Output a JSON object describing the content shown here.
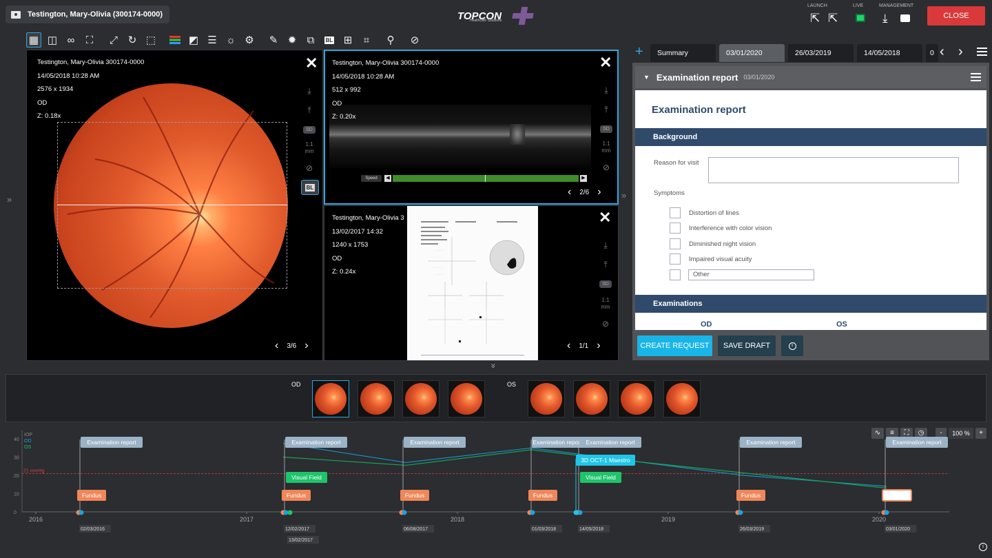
{
  "header": {
    "patient_label": "Testington, Mary-Olivia (300174-0000)",
    "brand": "TOPCON",
    "brand_sub": "Healthcare Solutions",
    "launch_label": "LAUNCH",
    "live_label": "LIVE",
    "management_label": "MANAGEMENT",
    "close_label": "CLOSE"
  },
  "toolbar": {
    "icons": [
      "grid-layout-icon",
      "split-layout-icon",
      "link-icon",
      "fullscreen-icon",
      "expand-diagonal-icon",
      "rotate-icon",
      "crop-icon",
      "color-channels-icon",
      "contrast-icon",
      "lines-icon",
      "brightness-icon",
      "settings-gear-icon",
      "pen-icon",
      "sun-icon",
      "layers-icon",
      "bl-icon",
      "grid-settings-icon",
      "mouse-icon",
      "marker-icon",
      "reset-icon"
    ]
  },
  "viewer1": {
    "line1": "Testington, Mary-Olivia 300174-0000",
    "line2": "14/05/2018 10:28 AM",
    "line3": "2576 x 1934",
    "line4": "OD",
    "line5": "Z: 0.18x",
    "pager": "3/6"
  },
  "viewer2": {
    "line1": "Testington, Mary-Olivia 300174-0000",
    "line2": "14/05/2018 10:28 AM",
    "line3": "512 x 992",
    "line4": "OD",
    "line5": "Z: 0.20x",
    "speed_label": "Speed",
    "pager": "2/6"
  },
  "viewer3": {
    "line1": "Testington, Mary-Olivia 3",
    "line2": "13/02/2017 14:32",
    "line3": "1240 x 1753",
    "line4": "OD",
    "line5": "Z: 0.24x",
    "pager": "1/1"
  },
  "side_tools": {
    "sd": "SD",
    "scale": "1:1",
    "unit": "mm",
    "bl": "BL"
  },
  "tabs": {
    "summary": "Summary",
    "t1": "03/01/2020",
    "t2": "26/03/2019",
    "t3": "14/05/2018",
    "t4": "0"
  },
  "report": {
    "header_title": "Examination report",
    "header_date": "03/01/2020",
    "title": "Examination report",
    "background_section": "Background",
    "reason_label": "Reason for visit",
    "reason_value": "",
    "symptoms_label": "Symptoms",
    "symptoms": [
      "Distortion of lines",
      "Interference with color vision",
      "Diminished night vision",
      "Impaired visual acuity"
    ],
    "other_placeholder": "Other",
    "examinations_section": "Examinations",
    "od": "OD",
    "os": "OS",
    "create_request": "CREATE REQUEST",
    "save_draft": "SAVE DRAFT",
    "info_icon": "info-icon"
  },
  "thumbs": {
    "od_label": "OD",
    "os_label": "OS",
    "od_count": 4,
    "os_count": 4
  },
  "timeline": {
    "legend": [
      "IOP",
      "OD",
      "OS"
    ],
    "y_ticks": [
      "40",
      "30",
      "20",
      "10",
      "0"
    ],
    "threshold_label": "21 mmHg",
    "years": [
      "2016",
      "2017",
      "2018",
      "2019",
      "2020"
    ],
    "zoom": "100 %",
    "zoom_minus": "-",
    "zoom_plus": "+",
    "dates": [
      "02/03/2016",
      "12/02/2017",
      "13/02/2017",
      "06/08/2017",
      "01/03/2018",
      "14/05/2018",
      "26/03/2019",
      "03/01/2020"
    ],
    "exam_label": "Examination report",
    "fundus_label": "Fundus",
    "vf_label": "Visual Field",
    "oct_label": "3D OCT-1 Maestro"
  },
  "colors": {
    "accent": "#2fa7e1",
    "close": "#d9393a",
    "section": "#2f4a6b",
    "fundus_tag": "#f0875a",
    "vf_tag": "#1ec46b",
    "oct_tag": "#1fc6e8",
    "exam_tag": "#9bb3c6"
  }
}
